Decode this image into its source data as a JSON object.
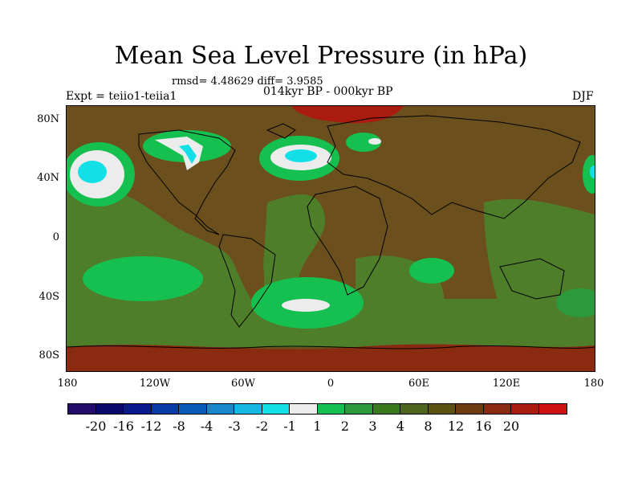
{
  "title": "Mean Sea Level Pressure (in hPa)",
  "stats": "rmsd= 4.48629 diff= 3.9585",
  "experiment": "Expt = teiio1-teiia1",
  "period": "014kyr BP - 000kyr BP",
  "season": "DJF",
  "map": {
    "lat_ticks": [
      {
        "label": "80N",
        "value": 80
      },
      {
        "label": "40N",
        "value": 40
      },
      {
        "label": "0",
        "value": 0
      },
      {
        "label": "40S",
        "value": -40
      },
      {
        "label": "80S",
        "value": -80
      }
    ],
    "lon_ticks": [
      {
        "label": "180",
        "value": -180
      },
      {
        "label": "120W",
        "value": -120
      },
      {
        "label": "60W",
        "value": -60
      },
      {
        "label": "0",
        "value": 0
      },
      {
        "label": "60E",
        "value": 60
      },
      {
        "label": "120E",
        "value": 120
      },
      {
        "label": "180",
        "value": 180
      }
    ],
    "background_color": "#6b4f1c",
    "ocean_base_color": "#4f7e2a"
  },
  "colorbar": {
    "colors": [
      "#240c6c",
      "#08086a",
      "#0a1a8c",
      "#0a3aa6",
      "#0a5ab8",
      "#1a86cc",
      "#14b8e0",
      "#12e0e6",
      "#ececec",
      "#16c050",
      "#2c9a3c",
      "#3a7a1e",
      "#4f641c",
      "#5c5214",
      "#6e3c10",
      "#8a2a10",
      "#aa1c10",
      "#cc1212"
    ],
    "labels": [
      "-20",
      "-16",
      "-12",
      "-8",
      "-4",
      "-3",
      "-2",
      "-1",
      "1",
      "2",
      "3",
      "4",
      "8",
      "12",
      "16",
      "20"
    ]
  }
}
